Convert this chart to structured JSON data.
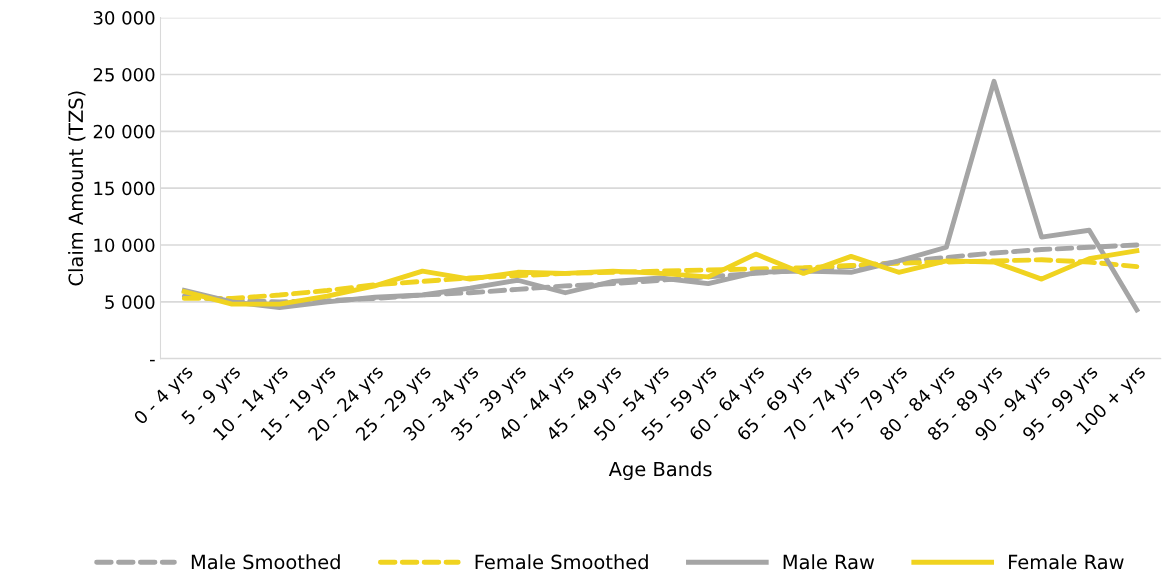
{
  "chart_data": {
    "type": "line",
    "xlabel": "Age Bands",
    "ylabel": "Claim Amount (TZS)",
    "categories": [
      "0 - 4 yrs",
      "5 - 9 yrs",
      "10 - 14 yrs",
      "15 - 19 yrs",
      "20 - 24 yrs",
      "25 - 29 yrs",
      "30 - 34 yrs",
      "35 - 39 yrs",
      "40 - 44 yrs",
      "45 - 49 yrs",
      "50 - 54 yrs",
      "55 - 59 yrs",
      "60 - 64 yrs",
      "65 - 69 yrs",
      "70 - 74 yrs",
      "75 - 79 yrs",
      "80 - 84 yrs",
      "85 - 89 yrs",
      "90 - 94 yrs",
      "95 - 99 yrs",
      "100 + yrs"
    ],
    "series": [
      {
        "name": "Male Smoothed",
        "color": "#a5a5a5",
        "line_style": "dashed",
        "values": [
          5500,
          5100,
          5000,
          5100,
          5300,
          5600,
          5800,
          6100,
          6400,
          6600,
          6900,
          7200,
          7500,
          7800,
          8100,
          8500,
          8900,
          9300,
          9600,
          9800,
          10000
        ]
      },
      {
        "name": "Female Smoothed",
        "color": "#f0d320",
        "line_style": "dashed",
        "values": [
          5300,
          5300,
          5600,
          6000,
          6500,
          6800,
          7100,
          7300,
          7500,
          7600,
          7700,
          7800,
          7900,
          8000,
          8200,
          8400,
          8500,
          8600,
          8700,
          8500,
          8100
        ]
      },
      {
        "name": "Male Raw",
        "color": "#a5a5a5",
        "line_style": "solid",
        "values": [
          6000,
          5000,
          4500,
          5000,
          5400,
          5600,
          6200,
          6900,
          5800,
          6800,
          7100,
          6600,
          7600,
          7700,
          7600,
          8600,
          9800,
          24400,
          10700,
          11300,
          4300
        ]
      },
      {
        "name": "Female Raw",
        "color": "#f0d320",
        "line_style": "solid",
        "values": [
          5900,
          4800,
          4800,
          5500,
          6400,
          7700,
          7000,
          7600,
          7500,
          7700,
          7500,
          7200,
          9200,
          7500,
          9000,
          7600,
          8600,
          8500,
          7000,
          8800,
          9500
        ]
      }
    ],
    "ylim": [
      0,
      30000
    ],
    "yticks": [
      {
        "value": 0,
        "label": "-"
      },
      {
        "value": 5000,
        "label": "5 000"
      },
      {
        "value": 10000,
        "label": "10 000"
      },
      {
        "value": 15000,
        "label": "15 000"
      },
      {
        "value": 20000,
        "label": "20 000"
      },
      {
        "value": 25000,
        "label": "25 000"
      },
      {
        "value": 30000,
        "label": "30 000"
      }
    ],
    "grid": "y",
    "legend": "bottom",
    "marker": "none"
  }
}
